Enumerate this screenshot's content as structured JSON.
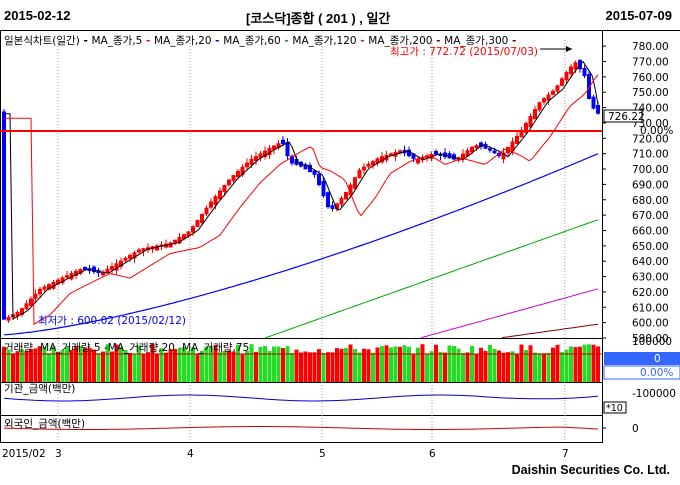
{
  "header": {
    "start_date": "2015-02-12",
    "title": "[코스닥]종합 ( 201 ) , 일간",
    "end_date": "2015-07-09"
  },
  "legend": {
    "prefix": "일본식차트(일간)",
    "items": [
      {
        "label": "MA_종가,5",
        "color": "#000000"
      },
      {
        "label": "MA_종가,20",
        "color": "#ff0000"
      },
      {
        "label": "MA_종가,60",
        "color": "#0000ff"
      },
      {
        "label": "MA_종가,120",
        "color": "#00aa00"
      },
      {
        "label": "MA_종가,200",
        "color": "#cc00cc"
      },
      {
        "label": "MA_종가,300",
        "color": "#800000"
      }
    ]
  },
  "annotations": {
    "high": "최고가 : 772.72 (2015/07/03)",
    "low": "최저가 : 600.02 (2015/02/12)",
    "current_price": "726.22",
    "current_change": "0.00%"
  },
  "volume_panel": {
    "legend": [
      "거래량",
      "MA_거래량,5",
      "MA_거래량,20",
      "MA_거래량,75"
    ],
    "axis_top": "100000",
    "value_box": "0",
    "pct_box": "0.00%"
  },
  "inst_panel": {
    "legend": "기관_금액(백만)",
    "axis": "-100000",
    "scale": "*10"
  },
  "foreign_panel": {
    "legend": "외국인_금액(백만)",
    "axis": "0"
  },
  "x_axis": {
    "labels": [
      "2015/02",
      "3",
      "4",
      "5",
      "6",
      "7"
    ]
  },
  "price_axis": {
    "labels": [
      "780.00",
      "770.00",
      "760.00",
      "750.00",
      "740.00",
      "730.00",
      "720.00",
      "710.00",
      "700.00",
      "690.00",
      "680.00",
      "670.00",
      "660.00",
      "650.00",
      "640.00",
      "630.00",
      "620.00",
      "610.00",
      "600.00",
      "590.00"
    ]
  },
  "footer": "Daishin Securities Co. Ltd.",
  "colors": {
    "up": "#ff0000",
    "down": "#0000ff",
    "volume": "#22dd22",
    "grid": "#888888"
  },
  "chart_data": {
    "type": "candlestick",
    "y_range": [
      590,
      784
    ],
    "high": 772.72,
    "low": 600.02,
    "reference_line": 726.22
  }
}
